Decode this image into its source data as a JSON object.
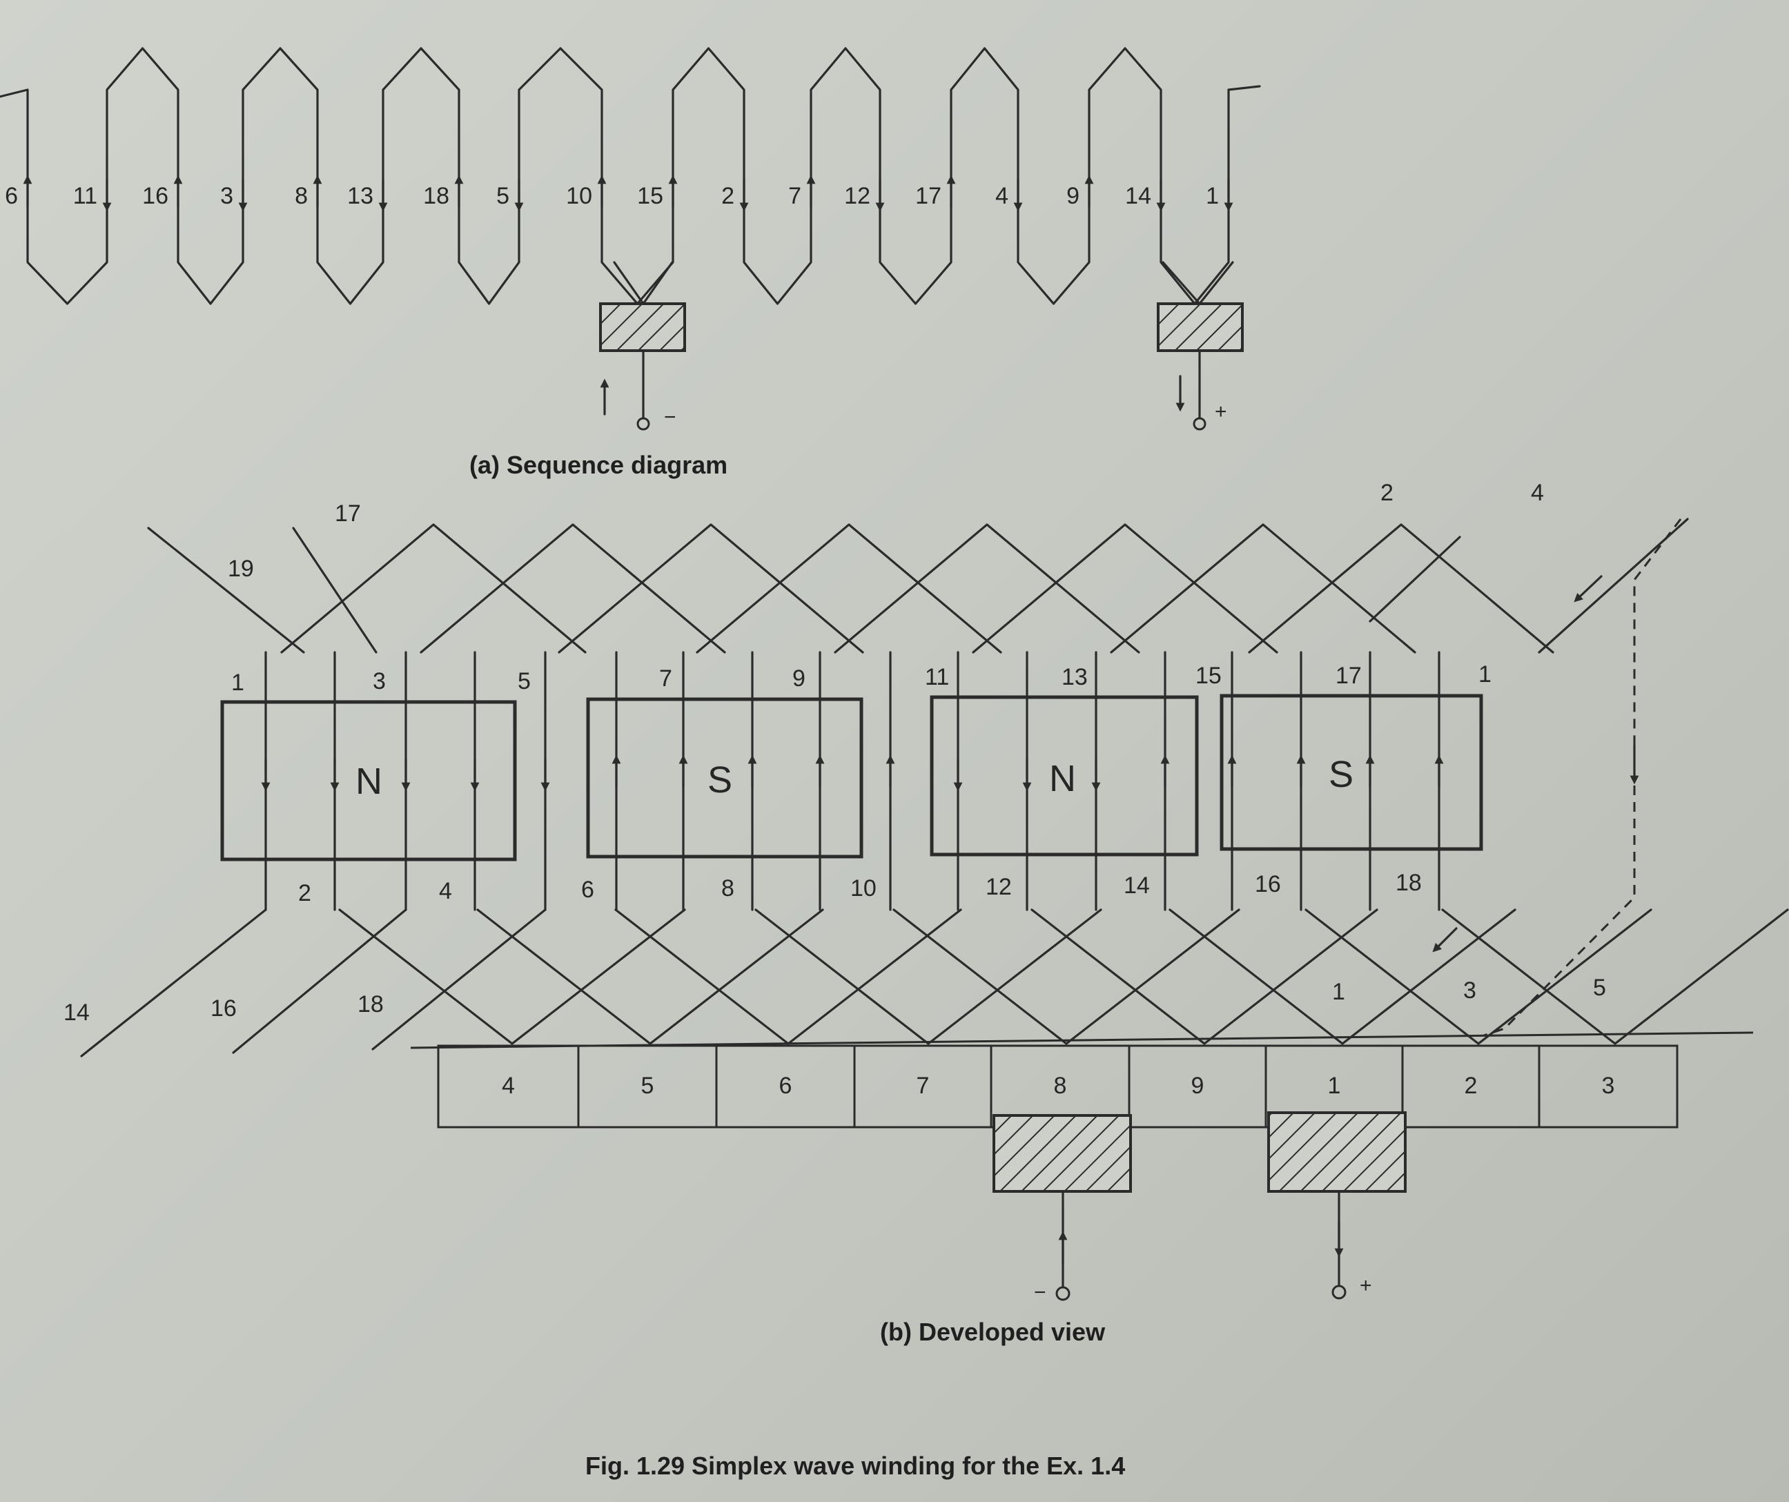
{
  "sequence": {
    "conductors": [
      {
        "label": "6",
        "dir": "up"
      },
      {
        "label": "11",
        "dir": "down"
      },
      {
        "label": "16",
        "dir": "up"
      },
      {
        "label": "3",
        "dir": "down"
      },
      {
        "label": "8",
        "dir": "up"
      },
      {
        "label": "13",
        "dir": "down"
      },
      {
        "label": "18",
        "dir": "up"
      },
      {
        "label": "5",
        "dir": "down"
      },
      {
        "label": "10",
        "dir": "up"
      },
      {
        "label": "15",
        "dir": "up"
      },
      {
        "label": "2",
        "dir": "down"
      },
      {
        "label": "7",
        "dir": "up"
      },
      {
        "label": "12",
        "dir": "down"
      },
      {
        "label": "17",
        "dir": "up"
      },
      {
        "label": "4",
        "dir": "down"
      },
      {
        "label": "9",
        "dir": "up"
      },
      {
        "label": "14",
        "dir": "down"
      },
      {
        "label": "1",
        "dir": "down"
      }
    ],
    "brush_minus": "−",
    "brush_plus": "+",
    "caption": "(a) Sequence diagram"
  },
  "developed": {
    "top_labels": [
      "1",
      "3",
      "5",
      "7",
      "9",
      "11",
      "13",
      "15",
      "17",
      "1"
    ],
    "bottom_labels": [
      "2",
      "4",
      "6",
      "8",
      "10",
      "12",
      "14",
      "16",
      "18"
    ],
    "poles": [
      "N",
      "S",
      "N",
      "S"
    ],
    "left_top_labels": [
      "19",
      "17"
    ],
    "right_top_labels": [
      "2",
      "4"
    ],
    "left_bottom_labels": [
      "14",
      "16",
      "18"
    ],
    "right_bottom_labels": [
      "1",
      "3",
      "5"
    ],
    "commutator_segments": [
      "4",
      "5",
      "6",
      "7",
      "8",
      "9",
      "1",
      "2",
      "3"
    ],
    "brush_minus": "−",
    "brush_plus": "+",
    "caption": "(b) Developed view"
  },
  "figure_caption": "Fig. 1.29 Simplex wave winding for the Ex. 1.4"
}
